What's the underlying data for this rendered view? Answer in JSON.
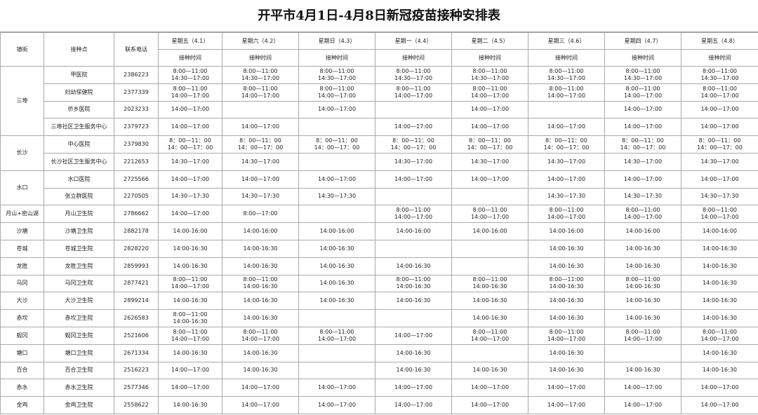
{
  "title": "开平市4月1日-4月8日新冠疫苗接种安排表",
  "columns": [
    "镇街",
    "接种点",
    "联系电话"
  ],
  "days": [
    {
      "name": "星期五（4.1）",
      "sub": "接种时间"
    },
    {
      "name": "星期六（4.2）",
      "sub": "接种时间"
    },
    {
      "name": "星期日（4.3）",
      "sub": "接种时间"
    },
    {
      "name": "星期一（4.4）",
      "sub": "接种时间"
    },
    {
      "name": "星期二（4.5）",
      "sub": "接种时间"
    },
    {
      "name": "星期三（4.6）",
      "sub": "接种时间"
    },
    {
      "name": "星期四（4.7）",
      "sub": "接种时间"
    },
    {
      "name": "星期五（4.8）",
      "sub": "接种时间"
    }
  ],
  "rows": [
    {
      "town": "三埠",
      "site": "甲医院",
      "phone": "2386223",
      "times": [
        [
          "8:00—11:00",
          "14:30—17:00"
        ],
        [
          "8:00—11:00",
          "14:30—17:00"
        ],
        [
          "8:00—11:00",
          "14:30—17:00"
        ],
        [
          "8:00—11:00",
          "14:30—17:00"
        ],
        [
          "8:00—11:00",
          "14:30—17:00"
        ],
        [
          "8:00—11:00",
          "14:30—17:00"
        ],
        [
          "8:00—11:00",
          "14:30—17:00"
        ],
        [
          "8:00—11:00",
          "14:30—17:00"
        ]
      ]
    },
    {
      "site": "妇幼保健院",
      "phone": "2377339",
      "times": [
        [
          "8:00—11:00",
          "14:00—17:00"
        ],
        [
          "8:00—11:00",
          "14:00—17:00"
        ],
        [
          "8:00—11:00",
          "14:00—17:00"
        ],
        [
          "8:00—11:00",
          "14:00—17:00"
        ],
        [
          "8:00—11:00",
          "14:00—17:00"
        ],
        [
          "8:00—11:00",
          "14:00—17:00"
        ],
        [
          "8:00—11:00",
          "14:00—17:00"
        ],
        [
          "8:00—11:00",
          "14:00—17:00"
        ]
      ]
    },
    {
      "site": "侨乡医院",
      "phone": "2023233",
      "times": [
        [
          "14:00—17:00"
        ],
        [],
        [
          "14:00—17:00"
        ],
        [],
        [
          "14:00—17:00"
        ],
        [],
        [
          "14:00—17:00"
        ],
        [
          "14:00—17:00"
        ]
      ]
    },
    {
      "site": "三埠社区卫生服务中心",
      "phone": "2379723",
      "times": [
        [
          "14:00—17:00"
        ],
        [
          "14:00—17:00"
        ],
        [],
        [
          "14:00—17:00"
        ],
        [
          "14:00—17:00"
        ],
        [
          "14:00—17:00"
        ],
        [
          "14:00—17:00"
        ],
        [
          "14:00—17:00"
        ]
      ]
    },
    {
      "town": "长沙",
      "site": "中心医院",
      "phone": "2379830",
      "times": [
        [
          "8：00—11：00",
          "14：00—17：00"
        ],
        [
          "8：00—11：00",
          "14：00—17：00"
        ],
        [
          "8：00—11：00",
          "14：00—17：00"
        ],
        [
          "8：00—11：00",
          "14：00—17：00"
        ],
        [
          "8：00—11：00",
          "14：00—17：00"
        ],
        [
          "8：00—11：00",
          "14：00—17：00"
        ],
        [
          "8：00—11：00",
          "14：00—17：00"
        ],
        [
          "8：00—11：00",
          "14：00—17：00"
        ]
      ]
    },
    {
      "site": "长沙社区卫生服务中心",
      "phone": "2212653",
      "times": [
        [
          "14:30—17:00"
        ],
        [
          "14:30—17:00"
        ],
        [],
        [
          "14:30—17:00"
        ],
        [
          "14:30—17:00"
        ],
        [
          "14:30—17:00"
        ],
        [
          "14:30—17:00"
        ],
        [
          "14:30—17:00"
        ]
      ]
    },
    {
      "town": "水口",
      "site": "水口医院",
      "phone": "2725566",
      "times": [
        [
          "14:00—17:00"
        ],
        [
          "14:00—17:00"
        ],
        [
          "14:00—17:00"
        ],
        [
          "14:00—17:00"
        ],
        [
          "14:00—17:00"
        ],
        [
          "14:00—17:00"
        ],
        [
          "14:00—17:00"
        ],
        [
          "14:00—17:00"
        ]
      ]
    },
    {
      "site": "张立群医院",
      "phone": "2270505",
      "times": [
        [
          "14:30—17:30"
        ],
        [
          "14:30—17:30"
        ],
        [
          "14:30—17:30"
        ],
        [],
        [],
        [
          "14:30—17:30"
        ],
        [
          "14:30—17:30"
        ],
        [
          "14:30—17:30"
        ]
      ]
    },
    {
      "town": "月山+密山湖",
      "site": "月山卫生院",
      "phone": "2786662",
      "times": [
        [
          "14:00—17:00"
        ],
        [
          "8:00—17:00"
        ],
        [],
        [
          "8:00—11:00",
          "14:00—17:00"
        ],
        [
          "8:00—11:00",
          "14:00—17:00"
        ],
        [
          "8:00—11:00",
          "14:00—17:00"
        ],
        [
          "8:00—11:00",
          "14:00—17:00"
        ],
        [
          "8:00—11:00",
          "14:00—17:00"
        ]
      ]
    },
    {
      "town": "沙塘",
      "site": "沙塘卫生院",
      "phone": "2882178",
      "times": [
        [
          "14:00-16:00"
        ],
        [
          "14:00-16:00"
        ],
        [
          "14:00-16:00"
        ],
        [
          "14:00-16:00"
        ],
        [
          "14:00-16:00"
        ],
        [
          "14:00-16:00"
        ],
        [
          "14:00-16:00"
        ],
        [
          "14:00-16:00"
        ]
      ]
    },
    {
      "town": "苍城",
      "site": "苍城卫生院",
      "phone": "2828220",
      "times": [
        [
          "14:00-16:30"
        ],
        [
          "14:00-16:30"
        ],
        [
          "14:00-16:30"
        ],
        [],
        [],
        [
          "14:00-16:30"
        ],
        [
          "14:00-16:30"
        ],
        [
          "14:00-16:30"
        ]
      ]
    },
    {
      "town": "龙胜",
      "site": "龙胜卫生院",
      "phone": "2859993",
      "times": [
        [
          "14:00-16:30"
        ],
        [
          "14:00-16:30"
        ],
        [
          "14:00-16:30"
        ],
        [
          "14:00-16:30"
        ],
        [],
        [
          "14:00-16:30"
        ],
        [
          "14:00-16:30"
        ],
        [
          "14:00-16:30"
        ]
      ]
    },
    {
      "town": "马冈",
      "site": "马冈卫生院",
      "phone": "2877421",
      "times": [
        [
          "8:00—11:00",
          "14:00—17:00"
        ],
        [
          "8:00—11:00",
          "14:00-16:30"
        ],
        [
          "14:00-16:30"
        ],
        [
          "8:00—11:00",
          "14:00-16:30"
        ],
        [
          "8:00—11:00",
          "14:00-16:30"
        ],
        [
          "8:00—11:00",
          "14:00-16:30"
        ],
        [
          "8:00—11:00",
          "14:00-16:30"
        ],
        [
          "14:00-16:30"
        ]
      ]
    },
    {
      "town": "大沙",
      "site": "大沙卫生院",
      "phone": "2899214",
      "times": [
        [
          "14:00-16:30"
        ],
        [
          "14:00-16:30"
        ],
        [
          "14:00-16:30"
        ],
        [
          "14:00-16:30"
        ],
        [
          "14:00-16:30"
        ],
        [
          "14:00-16:30"
        ],
        [
          "14:00-16:30"
        ],
        [
          "14:00-16:30"
        ]
      ]
    },
    {
      "town": "赤坎",
      "site": "赤坎卫生院",
      "phone": "2626583",
      "times": [
        [
          "8:00—11:00",
          "14:00-16:30"
        ],
        [
          "14:00-16:30"
        ],
        [],
        [],
        [
          "14:00-16:30"
        ],
        [
          "14:00-16:30"
        ],
        [
          "14:00-16:30"
        ],
        [
          "14:00-16:30"
        ]
      ]
    },
    {
      "town": "蚬冈",
      "site": "蚬冈卫生院",
      "phone": "2521606",
      "times": [
        [
          "8:00—11:00",
          "14:00—17:00"
        ],
        [
          "8:00—11:00",
          "14:00—17:00"
        ],
        [
          "8:00—11:00",
          "14:00—17:00"
        ],
        [
          "14:00—17:00"
        ],
        [
          "8:00—11:00",
          "14:00—17:00"
        ],
        [
          "8:00—11:00",
          "14:00—17:00"
        ],
        [
          "8:00—11:00",
          "14:00—17:00"
        ],
        [
          "8:00—11:00",
          "14:00—17:00"
        ]
      ]
    },
    {
      "town": "塘口",
      "site": "塘口卫生院",
      "phone": "2671334",
      "times": [
        [
          "14:00-16:30"
        ],
        [
          "14:00-16:30"
        ],
        [],
        [
          "14:00-16:30"
        ],
        [],
        [
          "14:00-16:30"
        ],
        [],
        [
          "14:00-16:30"
        ]
      ]
    },
    {
      "town": "百合",
      "site": "百合卫生院",
      "phone": "2516223",
      "times": [
        [
          "14:00—17:00"
        ],
        [
          "14:00-16:30"
        ],
        [],
        [
          "14:00-16:30"
        ],
        [
          "14:00-16:30"
        ],
        [
          "14:00-16:30"
        ],
        [
          "14:00-16:30"
        ],
        [
          "14:00-16:30"
        ]
      ]
    },
    {
      "town": "赤水",
      "site": "赤水卫生院",
      "phone": "2577346",
      "times": [
        [
          "14:00—17:00"
        ],
        [
          "14:00—17:00"
        ],
        [
          "14:00—17:00"
        ],
        [
          "14:00—17:00"
        ],
        [
          "14:00—17:00"
        ],
        [
          "14:00—17:00"
        ],
        [
          "14:00—17:00"
        ],
        [
          "14:00—17:00"
        ]
      ]
    },
    {
      "town": "金鸡",
      "site": "金鸡卫生院",
      "phone": "2558622",
      "times": [
        [
          "14:00-16:30"
        ],
        [
          "14:00—17:00"
        ],
        [
          "14:00—17:00"
        ],
        [
          "14:00—17:00"
        ],
        [
          "14:00—17:00"
        ],
        [
          "14:00—17:00"
        ],
        [
          "14:00—17:00"
        ],
        [
          "14:00—17:00"
        ]
      ]
    }
  ]
}
